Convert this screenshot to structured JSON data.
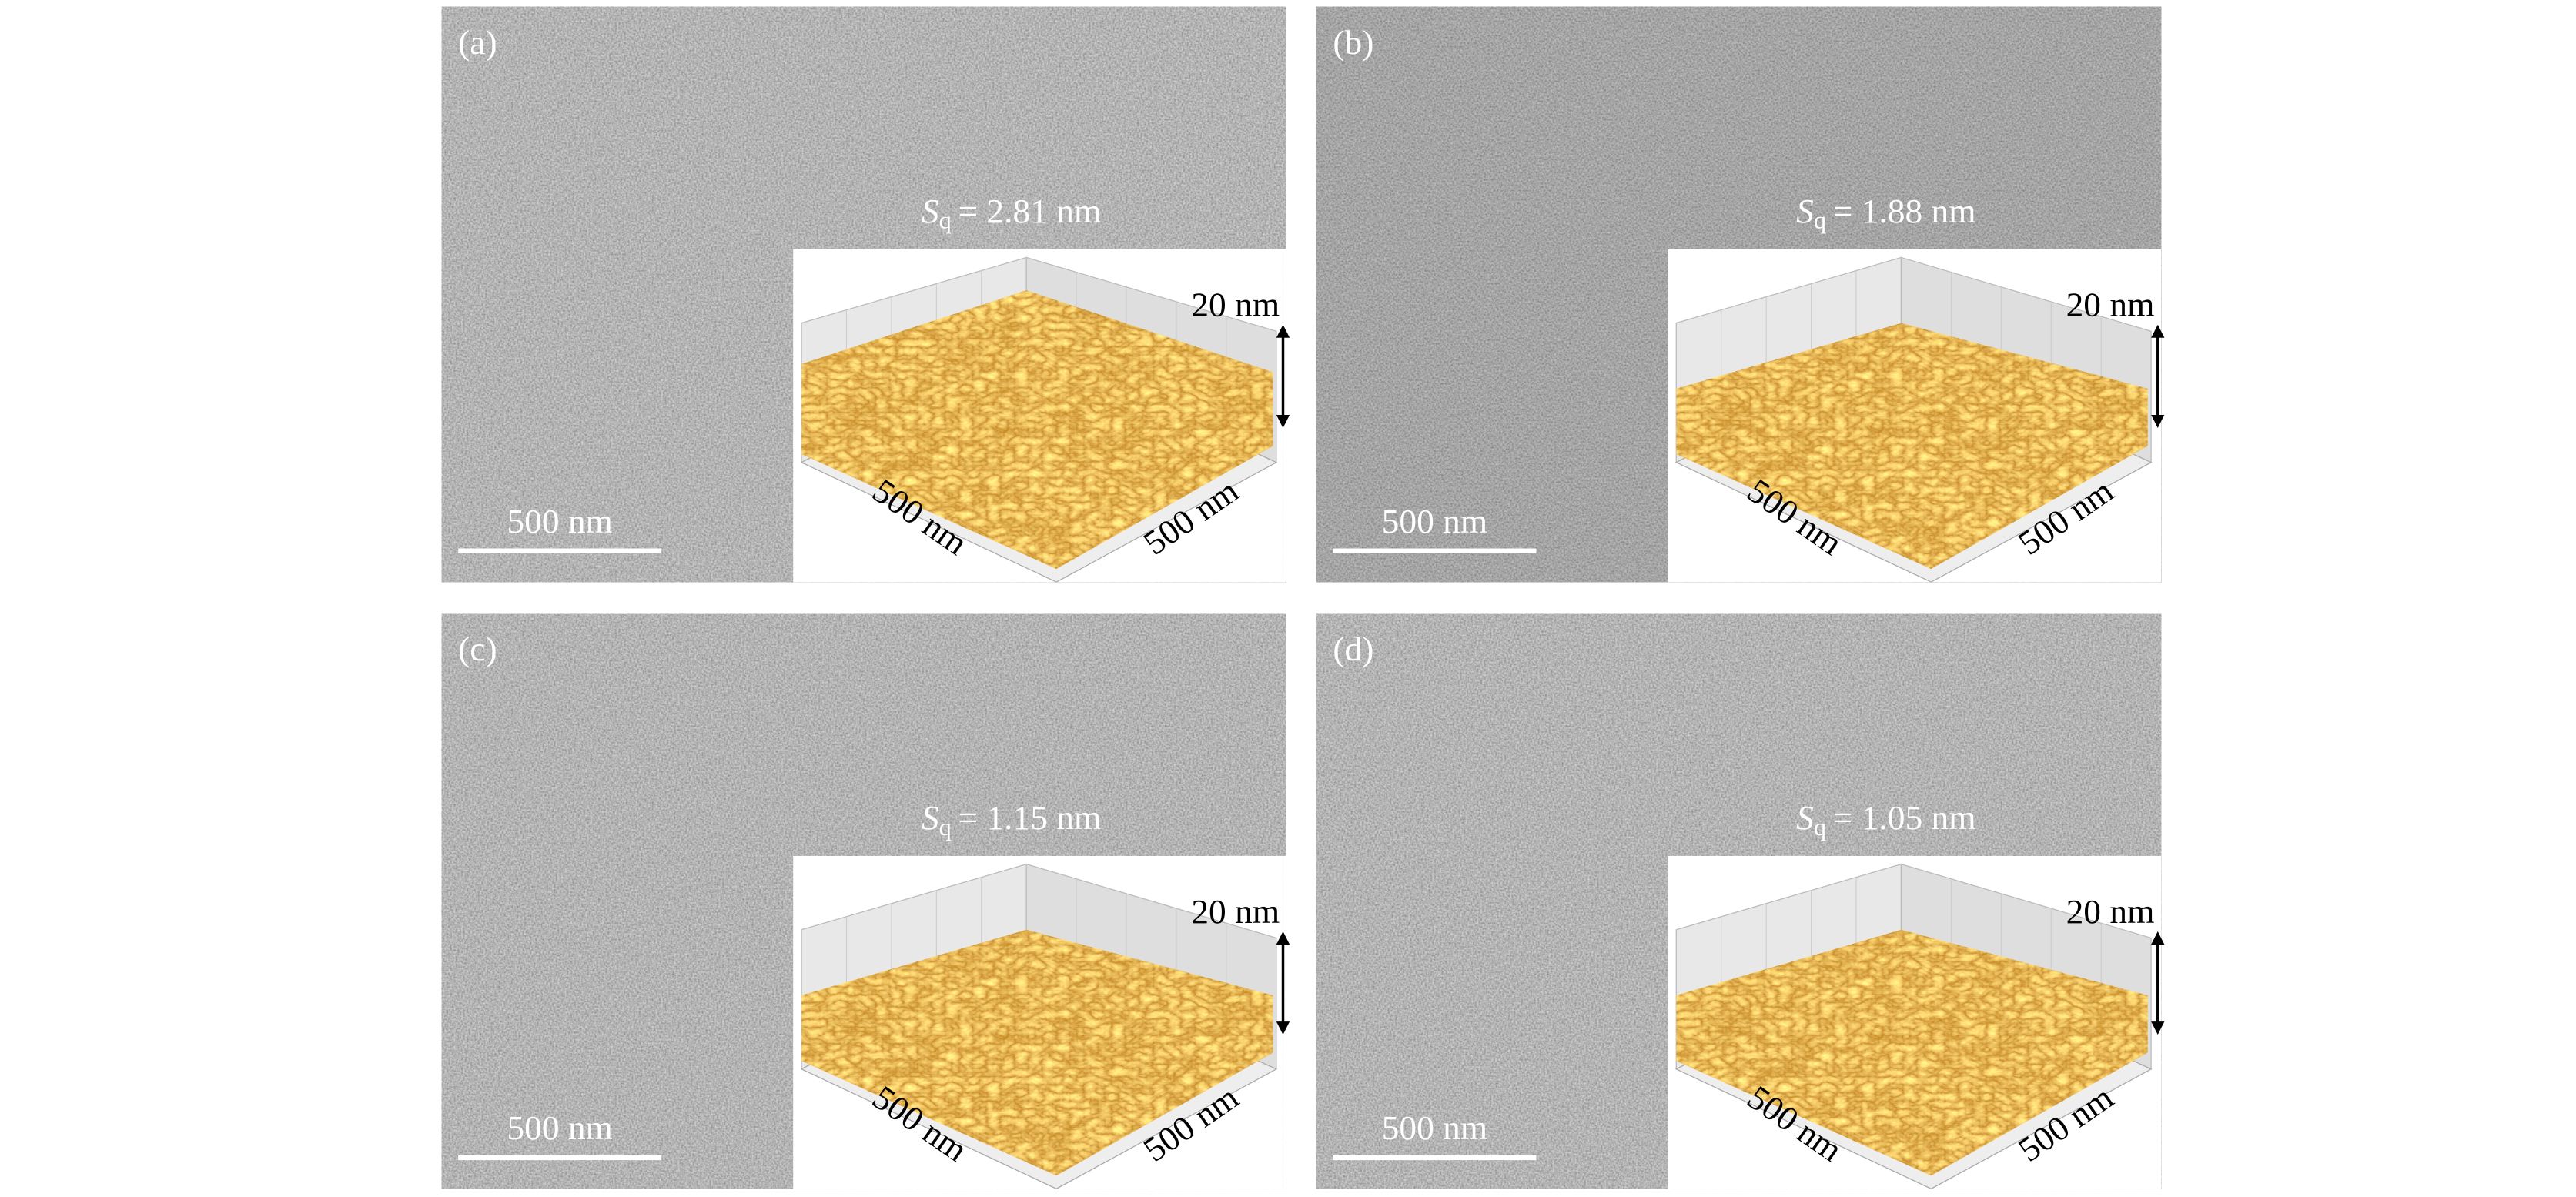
{
  "panels": [
    {
      "label": "(a)",
      "sq_symbol": "S",
      "sq_subscript": "q",
      "sq_value": "= 2.81 nm",
      "scale_bar": "500 nm",
      "inset": {
        "height_label": "20 nm",
        "x_label": "500 nm",
        "y_label": "500 nm"
      }
    },
    {
      "label": "(b)",
      "sq_symbol": "S",
      "sq_subscript": "q",
      "sq_value": "= 1.88 nm",
      "scale_bar": "500 nm",
      "inset": {
        "height_label": "20 nm",
        "x_label": "500 nm",
        "y_label": "500 nm"
      }
    },
    {
      "label": "(c)",
      "sq_symbol": "S",
      "sq_subscript": "q",
      "sq_value": "= 1.15 nm",
      "scale_bar": "500 nm",
      "inset": {
        "height_label": "20 nm",
        "x_label": "500 nm",
        "y_label": "500 nm"
      }
    },
    {
      "label": "(d)",
      "sq_symbol": "S",
      "sq_subscript": "q",
      "sq_value": "= 1.05 nm",
      "scale_bar": "500 nm",
      "inset": {
        "height_label": "20 nm",
        "x_label": "500 nm",
        "y_label": "500 nm"
      }
    }
  ]
}
